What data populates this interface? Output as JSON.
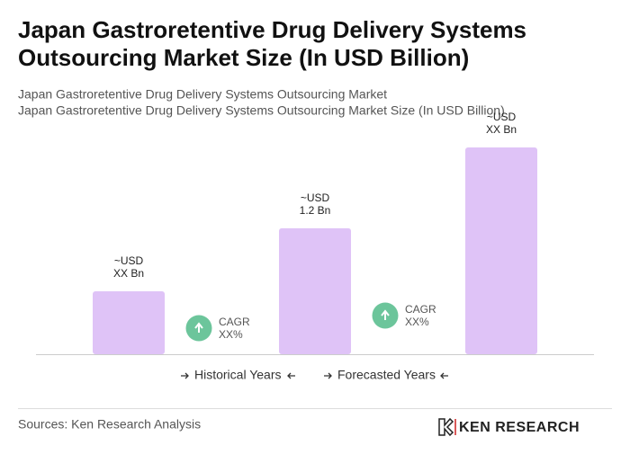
{
  "chart_data": {
    "type": "bar",
    "title": [
      "Japan Gastroretentive Drug Delivery Systems",
      "Outsourcing Market Size (In USD Billion)"
    ],
    "subtitle": [
      "Japan Gastroretentive Drug Delivery Systems Outsourcing Market",
      "Japan Gastroretentive Drug Delivery Systems Outsourcing Market Size (In USD Billion)"
    ],
    "categories": [
      null,
      null,
      null
    ],
    "values": [
      0.6,
      1.2,
      1.97
    ],
    "value_labels": [
      [
        "~USD",
        "XX Bn"
      ],
      [
        "~USD",
        "1.2 Bn"
      ],
      [
        "~USD",
        "XX Bn"
      ]
    ],
    "color": "#dfc3f7",
    "annotations": [
      [
        "CAGR",
        "XX%"
      ],
      [
        "CAGR",
        "XX%"
      ]
    ],
    "legend": [
      "Historical Years",
      "Forecasted Years"
    ],
    "source": "Sources: Ken Research Analysis",
    "brand": "KEN RESEARCH"
  }
}
